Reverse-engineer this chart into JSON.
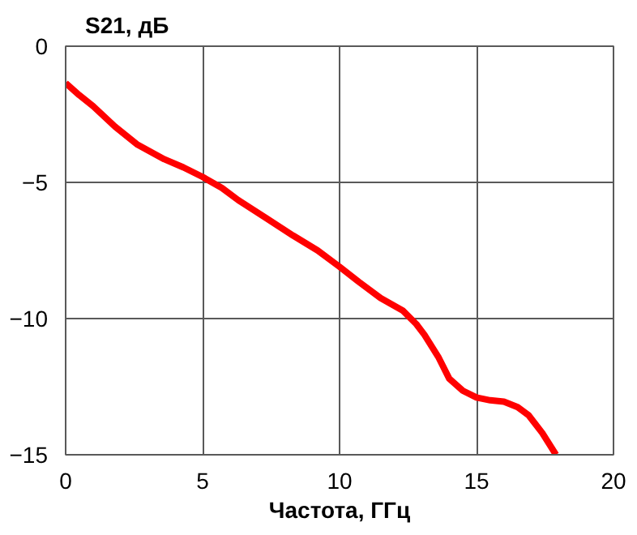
{
  "chart_data": {
    "type": "line",
    "ylabel": "S21, дБ",
    "xlabel": "Частота, ГГц",
    "x": [
      0,
      0.5,
      1,
      1.8,
      2.6,
      3.6,
      4.3,
      5,
      5.7,
      6.3,
      7.3,
      8.3,
      9.2,
      10,
      10.7,
      11.5,
      12.3,
      12.8,
      13.1,
      13.6,
      14,
      14.5,
      15,
      15.5,
      16,
      16.5,
      16.9,
      17.4,
      17.9
    ],
    "series": [
      {
        "color": "#ff0000",
        "values": [
          -1.35,
          -1.8,
          -2.2,
          -2.95,
          -3.6,
          -4.15,
          -4.45,
          -4.8,
          -5.2,
          -5.65,
          -6.3,
          -6.95,
          -7.5,
          -8.1,
          -8.65,
          -9.25,
          -9.7,
          -10.2,
          -10.6,
          -11.4,
          -12.2,
          -12.65,
          -12.9,
          -13.0,
          -13.05,
          -13.25,
          -13.55,
          -14.2,
          -15.0
        ]
      }
    ],
    "xlim": [
      0,
      20
    ],
    "ylim": [
      -15,
      0
    ],
    "xticks": [
      0,
      5,
      10,
      15,
      20
    ],
    "yticks": [
      -15,
      -10,
      -5,
      0
    ],
    "grid": true,
    "line_style": "solid"
  }
}
